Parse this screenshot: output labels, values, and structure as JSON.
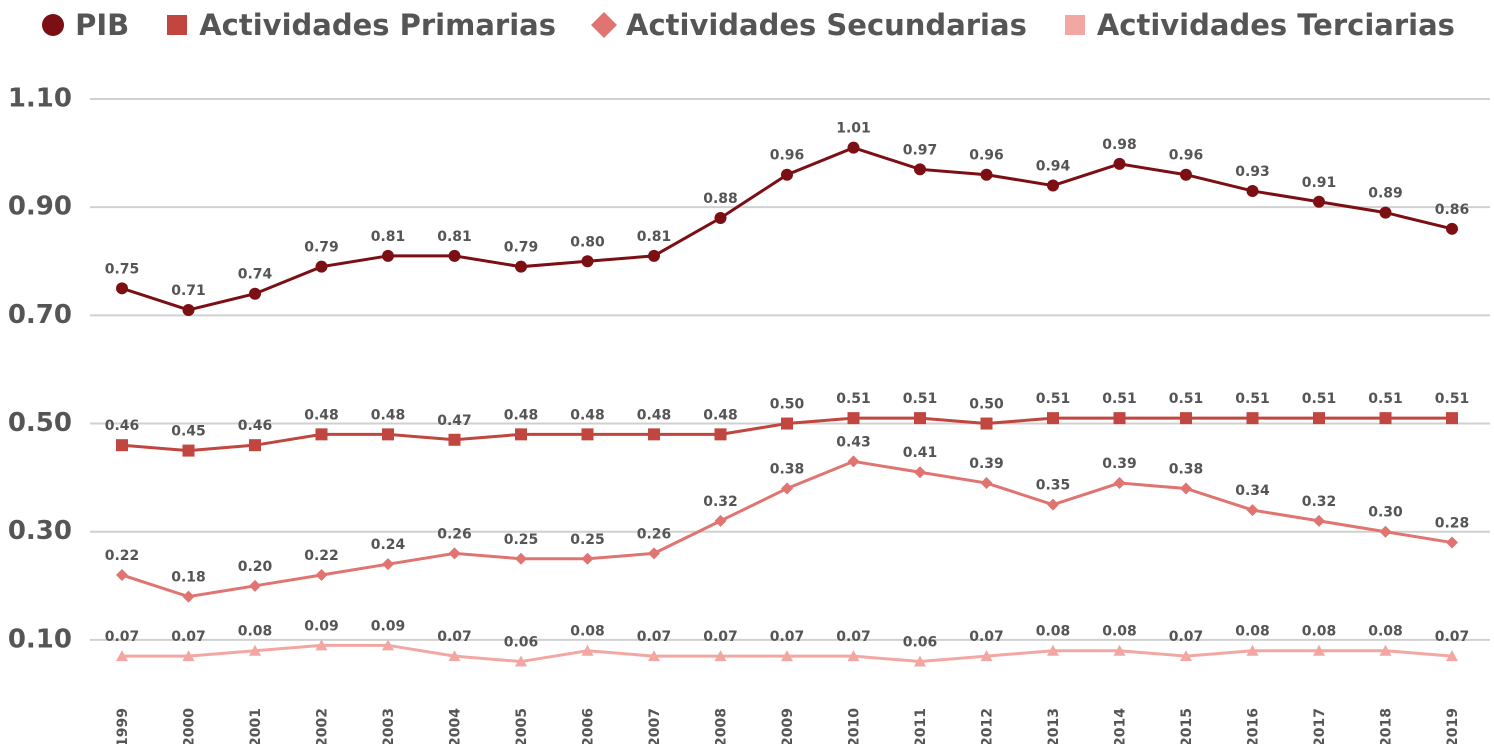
{
  "chart_data": {
    "type": "line",
    "categories": [
      "1999",
      "2000",
      "2001",
      "2002",
      "2003",
      "2004",
      "2005",
      "2006",
      "2007",
      "2008",
      "2009",
      "2010",
      "2011",
      "2012",
      "2013",
      "2014",
      "2015",
      "2016",
      "2017",
      "2018",
      "2019"
    ],
    "series": [
      {
        "name": "PIB",
        "color": "#7b0f14",
        "marker": "circle",
        "values": [
          0.75,
          0.71,
          0.74,
          0.79,
          0.81,
          0.81,
          0.79,
          0.8,
          0.81,
          0.88,
          0.96,
          1.01,
          0.97,
          0.96,
          0.94,
          0.98,
          0.96,
          0.93,
          0.91,
          0.89,
          0.86
        ],
        "value_labels": [
          "0.75",
          "0.71",
          "0.74",
          "0.79",
          "0.81",
          "0.81",
          "0.79",
          "0.80",
          "0.81",
          "0.88",
          "0.96",
          "1.01",
          "0.97",
          "0.96",
          "0.94",
          "0.98",
          "0.96",
          "0.93",
          "0.91",
          "0.89",
          "0.86"
        ]
      },
      {
        "name": "Actividades Primarias",
        "color": "#c0463f",
        "marker": "square",
        "values": [
          0.46,
          0.45,
          0.46,
          0.48,
          0.48,
          0.47,
          0.48,
          0.48,
          0.48,
          0.48,
          0.5,
          0.51,
          0.51,
          0.5,
          0.51,
          0.51,
          0.51,
          0.51,
          0.51,
          0.51,
          0.51
        ],
        "value_labels": [
          "0.46",
          "0.45",
          "0.46",
          "0.48",
          "0.48",
          "0.47",
          "0.48",
          "0.48",
          "0.48",
          "0.48",
          "0.50",
          "0.51",
          "0.51",
          "0.50",
          "0.51",
          "0.51",
          "0.51",
          "0.51",
          "0.51",
          "0.51",
          "0.51"
        ]
      },
      {
        "name": "Actividades Secundarias",
        "color": "#e07470",
        "marker": "diamond",
        "values": [
          0.22,
          0.18,
          0.2,
          0.22,
          0.24,
          0.26,
          0.25,
          0.25,
          0.26,
          0.32,
          0.38,
          0.43,
          0.41,
          0.39,
          0.35,
          0.39,
          0.38,
          0.34,
          0.32,
          0.3,
          0.28
        ],
        "value_labels": [
          "0.22",
          "0.18",
          "0.20",
          "0.22",
          "0.24",
          "0.26",
          "0.25",
          "0.25",
          "0.26",
          "0.32",
          "0.38",
          "0.43",
          "0.41",
          "0.39",
          "0.35",
          "0.39",
          "0.38",
          "0.34",
          "0.32",
          "0.30",
          "0.28"
        ]
      },
      {
        "name": "Actividades Terciarias",
        "color": "#f2a7a3",
        "marker": "triangle",
        "values": [
          0.07,
          0.07,
          0.08,
          0.09,
          0.09,
          0.07,
          0.06,
          0.08,
          0.07,
          0.07,
          0.07,
          0.07,
          0.06,
          0.07,
          0.08,
          0.08,
          0.07,
          0.08,
          0.08,
          0.08,
          0.07
        ],
        "value_labels": [
          "0.07",
          "0.07",
          "0.08",
          "0.09",
          "0.09",
          "0.07",
          "0.06",
          "0.08",
          "0.07",
          "0.07",
          "0.07",
          "0.07",
          "0.06",
          "0.07",
          "0.08",
          "0.08",
          "0.07",
          "0.08",
          "0.08",
          "0.08",
          "0.07"
        ]
      }
    ],
    "ylim": [
      0,
      1.1
    ],
    "yticks": [
      {
        "value": 0.1,
        "label": "0.10"
      },
      {
        "value": 0.3,
        "label": "0.30"
      },
      {
        "value": 0.5,
        "label": "0.50"
      },
      {
        "value": 0.7,
        "label": "0.70"
      },
      {
        "value": 0.9,
        "label": "0.90"
      },
      {
        "value": 1.1,
        "label": "1.10"
      }
    ],
    "grid": true,
    "legend": "top"
  }
}
